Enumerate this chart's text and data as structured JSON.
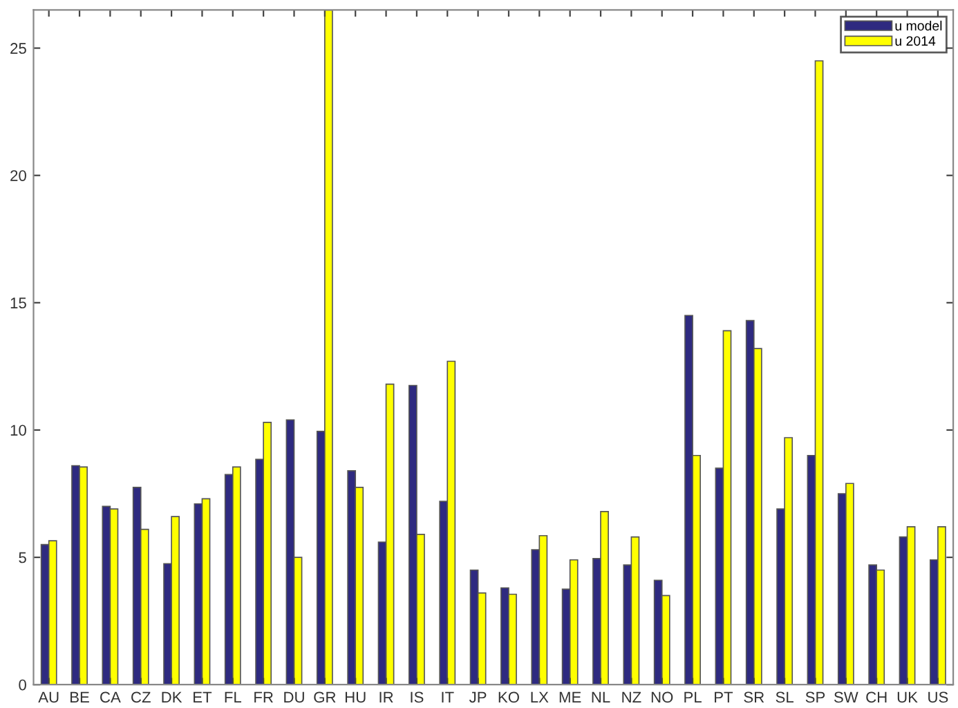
{
  "chart_data": {
    "type": "bar",
    "categories": [
      "AU",
      "BE",
      "CA",
      "CZ",
      "DK",
      "ET",
      "FL",
      "FR",
      "DU",
      "GR",
      "HU",
      "IR",
      "IS",
      "IT",
      "JP",
      "KO",
      "LX",
      "ME",
      "NL",
      "NZ",
      "NO",
      "PL",
      "PT",
      "SR",
      "SL",
      "SP",
      "SW",
      "CH",
      "UK",
      "US"
    ],
    "series": [
      {
        "name": "u model",
        "color": "#2e2a80",
        "values": [
          5.5,
          8.6,
          7.0,
          7.75,
          4.75,
          7.1,
          8.25,
          8.85,
          10.4,
          9.95,
          8.4,
          5.6,
          11.75,
          7.2,
          4.5,
          3.8,
          5.3,
          3.75,
          4.95,
          4.7,
          4.1,
          14.5,
          8.5,
          14.3,
          6.9,
          9.0,
          7.5,
          4.7,
          5.8,
          4.9
        ]
      },
      {
        "name": "u 2014",
        "color": "#ffff00",
        "values": [
          5.65,
          8.55,
          6.9,
          6.1,
          6.6,
          7.3,
          8.55,
          10.3,
          5.0,
          26.5,
          7.75,
          11.8,
          5.9,
          12.7,
          3.6,
          3.55,
          5.85,
          4.9,
          6.8,
          5.8,
          3.5,
          9.0,
          13.9,
          13.2,
          9.7,
          24.5,
          7.9,
          4.5,
          6.2,
          6.2
        ]
      }
    ],
    "ylim": [
      0,
      26.5
    ],
    "yticks": [
      0,
      5,
      10,
      15,
      20,
      25
    ],
    "grid": false,
    "legend": "top right"
  }
}
